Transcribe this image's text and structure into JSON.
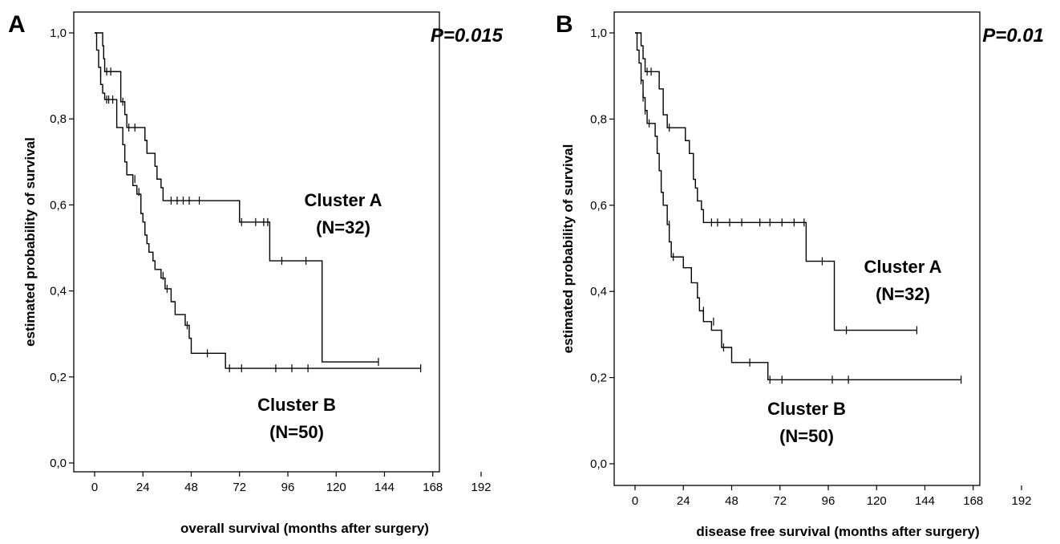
{
  "chart_data": [
    {
      "type": "line",
      "panel_label": "A",
      "annotation": "P=0.015",
      "xlabel": "overall survival (months after surgery)",
      "ylabel": "estimated probability of survival",
      "xticks": [
        "0",
        "24",
        "48",
        "72",
        "96",
        "120",
        "144",
        "168",
        "192"
      ],
      "yticks": [
        "0,0",
        "0,2",
        "0,4",
        "0,6",
        "0,8",
        "1,0"
      ],
      "xlim": [
        0,
        192
      ],
      "ylim": [
        0,
        1
      ],
      "series": [
        {
          "name": "Cluster A",
          "label_lines": [
            "Cluster A",
            "(N=32)"
          ],
          "steps": [
            [
              0,
              1.0
            ],
            [
              4,
              0.97
            ],
            [
              4.5,
              0.94
            ],
            [
              5,
              0.91
            ],
            [
              13,
              0.84
            ],
            [
              15,
              0.81
            ],
            [
              16,
              0.78
            ],
            [
              25,
              0.75
            ],
            [
              26,
              0.72
            ],
            [
              30,
              0.69
            ],
            [
              31,
              0.66
            ],
            [
              33,
              0.64
            ],
            [
              34,
              0.61
            ],
            [
              72,
              0.56
            ],
            [
              87,
              0.47
            ],
            [
              113,
              0.235
            ],
            [
              141,
              0.235
            ]
          ],
          "censored": [
            [
              6,
              0.91
            ],
            [
              8,
              0.91
            ],
            [
              14,
              0.84
            ],
            [
              17,
              0.78
            ],
            [
              20,
              0.78
            ],
            [
              38,
              0.61
            ],
            [
              41,
              0.61
            ],
            [
              44,
              0.61
            ],
            [
              47,
              0.61
            ],
            [
              52,
              0.61
            ],
            [
              73,
              0.56
            ],
            [
              80,
              0.56
            ],
            [
              84,
              0.56
            ],
            [
              86,
              0.56
            ],
            [
              93,
              0.47
            ],
            [
              105,
              0.47
            ],
            [
              141,
              0.235
            ]
          ]
        },
        {
          "name": "Cluster B",
          "label_lines": [
            "Cluster B",
            "(N=50)"
          ],
          "steps": [
            [
              0,
              1.0
            ],
            [
              1,
              0.96
            ],
            [
              2,
              0.92
            ],
            [
              3,
              0.88
            ],
            [
              4,
              0.86
            ],
            [
              5,
              0.845
            ],
            [
              11,
              0.78
            ],
            [
              14,
              0.74
            ],
            [
              15,
              0.7
            ],
            [
              16,
              0.67
            ],
            [
              19,
              0.645
            ],
            [
              21,
              0.625
            ],
            [
              23,
              0.58
            ],
            [
              24,
              0.56
            ],
            [
              25,
              0.53
            ],
            [
              26,
              0.51
            ],
            [
              27,
              0.49
            ],
            [
              29,
              0.47
            ],
            [
              30,
              0.45
            ],
            [
              33,
              0.43
            ],
            [
              35,
              0.405
            ],
            [
              38,
              0.375
            ],
            [
              40,
              0.345
            ],
            [
              45,
              0.32
            ],
            [
              47,
              0.29
            ],
            [
              48,
              0.255
            ],
            [
              65,
              0.22
            ],
            [
              162,
              0.22
            ]
          ],
          "censored": [
            [
              3,
              0.905
            ],
            [
              6,
              0.845
            ],
            [
              7,
              0.845
            ],
            [
              9,
              0.845
            ],
            [
              20,
              0.66
            ],
            [
              22,
              0.63
            ],
            [
              34,
              0.435
            ],
            [
              36,
              0.405
            ],
            [
              46,
              0.32
            ],
            [
              56,
              0.255
            ],
            [
              67,
              0.22
            ],
            [
              73,
              0.22
            ],
            [
              90,
              0.22
            ],
            [
              98,
              0.22
            ],
            [
              106,
              0.22
            ],
            [
              162,
              0.22
            ]
          ]
        }
      ]
    },
    {
      "type": "line",
      "panel_label": "B",
      "annotation": "P=0.01",
      "xlabel": "disease free survival (months after surgery)",
      "ylabel": "estimated probability of survival",
      "xticks": [
        "0",
        "24",
        "48",
        "72",
        "96",
        "120",
        "144",
        "168",
        "192"
      ],
      "yticks": [
        "0,0",
        "0,2",
        "0,4",
        "0,6",
        "0,8",
        "1,0"
      ],
      "xlim": [
        0,
        192
      ],
      "ylim": [
        0,
        1
      ],
      "series": [
        {
          "name": "Cluster A",
          "label_lines": [
            "Cluster A",
            "(N=32)"
          ],
          "steps": [
            [
              0,
              1.0
            ],
            [
              3,
              0.97
            ],
            [
              4,
              0.94
            ],
            [
              5,
              0.91
            ],
            [
              12,
              0.87
            ],
            [
              14,
              0.81
            ],
            [
              16,
              0.78
            ],
            [
              25,
              0.75
            ],
            [
              27,
              0.72
            ],
            [
              29,
              0.66
            ],
            [
              30,
              0.64
            ],
            [
              31,
              0.61
            ],
            [
              33,
              0.59
            ],
            [
              34,
              0.56
            ],
            [
              85,
              0.47
            ],
            [
              99,
              0.31
            ],
            [
              140,
              0.31
            ]
          ],
          "censored": [
            [
              6,
              0.91
            ],
            [
              8,
              0.91
            ],
            [
              17,
              0.78
            ],
            [
              38,
              0.56
            ],
            [
              41,
              0.56
            ],
            [
              47,
              0.56
            ],
            [
              53,
              0.56
            ],
            [
              62,
              0.56
            ],
            [
              67,
              0.56
            ],
            [
              73,
              0.56
            ],
            [
              79,
              0.56
            ],
            [
              84,
              0.56
            ],
            [
              93,
              0.47
            ],
            [
              105,
              0.31
            ],
            [
              140,
              0.31
            ]
          ]
        },
        {
          "name": "Cluster B",
          "label_lines": [
            "Cluster B",
            "(N=50)"
          ],
          "steps": [
            [
              0,
              1.0
            ],
            [
              1,
              0.96
            ],
            [
              2,
              0.93
            ],
            [
              3,
              0.89
            ],
            [
              4,
              0.85
            ],
            [
              5,
              0.82
            ],
            [
              6,
              0.79
            ],
            [
              10,
              0.76
            ],
            [
              11,
              0.72
            ],
            [
              12,
              0.68
            ],
            [
              13,
              0.63
            ],
            [
              14,
              0.6
            ],
            [
              16,
              0.555
            ],
            [
              17,
              0.515
            ],
            [
              18,
              0.48
            ],
            [
              24,
              0.455
            ],
            [
              28,
              0.42
            ],
            [
              31,
              0.385
            ],
            [
              32,
              0.355
            ],
            [
              34,
              0.33
            ],
            [
              38,
              0.31
            ],
            [
              43,
              0.27
            ],
            [
              48,
              0.235
            ],
            [
              66,
              0.195
            ],
            [
              162,
              0.195
            ]
          ],
          "censored": [
            [
              3,
              0.89
            ],
            [
              4,
              0.85
            ],
            [
              5,
              0.82
            ],
            [
              7,
              0.79
            ],
            [
              17,
              0.555
            ],
            [
              19,
              0.48
            ],
            [
              34,
              0.355
            ],
            [
              39,
              0.33
            ],
            [
              44,
              0.27
            ],
            [
              57,
              0.235
            ],
            [
              67,
              0.195
            ],
            [
              73,
              0.195
            ],
            [
              98,
              0.195
            ],
            [
              106,
              0.195
            ],
            [
              162,
              0.195
            ]
          ]
        }
      ]
    }
  ]
}
